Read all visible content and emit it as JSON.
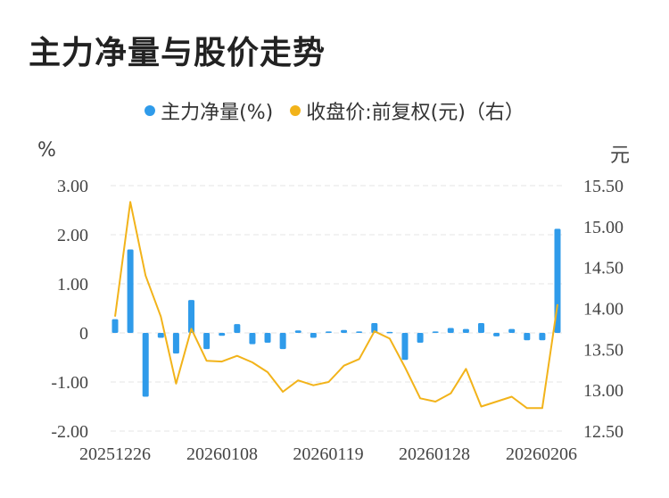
{
  "title": "主力净量与股价走势",
  "legend": {
    "net": "主力净量(%)",
    "price": "收盘价:前复权(元)（右）"
  },
  "units": {
    "left": "%",
    "right": "元"
  },
  "colors": {
    "bar": "#2f9bea",
    "line": "#f2b31a",
    "grid": "#e6e6e6"
  },
  "chart_data": {
    "type": "bar+line",
    "x_tick_labels": [
      "20251226",
      "20260108",
      "20260119",
      "20260128",
      "20260206"
    ],
    "left_axis": {
      "ticks": [
        "3.00",
        "2.00",
        "1.00",
        "0",
        "-1.00",
        "-2.00"
      ],
      "ylim": [
        -2,
        3
      ]
    },
    "right_axis": {
      "ticks": [
        "15.50",
        "15.00",
        "14.50",
        "14.00",
        "13.50",
        "13.00",
        "12.50"
      ],
      "ylim": [
        12.5,
        15.5
      ]
    },
    "series": [
      {
        "name": "主力净量(%)",
        "type": "bar",
        "axis": "left",
        "values": [
          0.28,
          1.7,
          -1.3,
          -0.1,
          -0.42,
          0.67,
          -0.33,
          -0.06,
          0.18,
          -0.23,
          -0.2,
          -0.33,
          0.05,
          -0.1,
          0.03,
          0.06,
          0.03,
          0.2,
          0.02,
          -0.55,
          -0.2,
          0.03,
          0.1,
          0.08,
          0.2,
          -0.07,
          0.08,
          -0.15,
          -0.15,
          2.12
        ]
      },
      {
        "name": "收盘价:前复权(元)（右）",
        "type": "line",
        "axis": "right",
        "values": [
          13.9,
          15.3,
          14.4,
          13.9,
          13.08,
          13.75,
          13.36,
          13.35,
          13.42,
          13.34,
          13.22,
          12.98,
          13.12,
          13.06,
          13.1,
          13.3,
          13.38,
          13.72,
          13.63,
          13.28,
          12.9,
          12.86,
          12.96,
          13.26,
          12.8,
          12.86,
          12.92,
          12.78,
          12.78,
          14.05
        ]
      }
    ]
  }
}
